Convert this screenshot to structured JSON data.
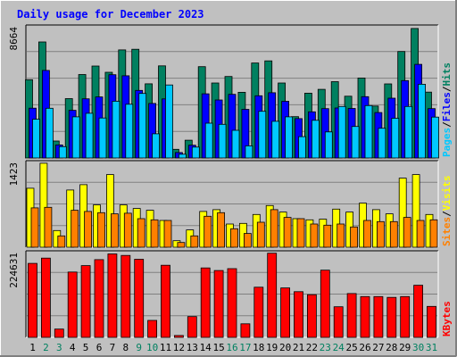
{
  "chart_data": {
    "type": "bar",
    "title": "Daily usage for December 2023",
    "x": [
      "1",
      "2",
      "3",
      "4",
      "5",
      "6",
      "7",
      "8",
      "9",
      "10",
      "11",
      "12",
      "13",
      "14",
      "15",
      "16",
      "17",
      "18",
      "19",
      "20",
      "21",
      "22",
      "23",
      "24",
      "25",
      "26",
      "27",
      "28",
      "29",
      "30",
      "31"
    ],
    "weekend_days": [
      "2",
      "3",
      "9",
      "10",
      "16",
      "17",
      "23",
      "24",
      "30",
      "31"
    ],
    "grid": true,
    "colors": {
      "background": "#c0c0c0",
      "title": "#0000ff",
      "pages": "#00c8ff",
      "files": "#0000ff",
      "hits": "#008060",
      "sites": "#ff8000",
      "visits": "#ffff00",
      "kbytes": "#ff0000",
      "weekday_label": "#000000",
      "weekend_label": "#008060"
    },
    "panels": [
      {
        "id": "top",
        "max_label": "8664",
        "ymax": 8664,
        "legend": [
          {
            "name": "Pages",
            "color": "#00c8ff"
          },
          {
            "name": "/",
            "color": "#000000"
          },
          {
            "name": "Files",
            "color": "#0000ff"
          },
          {
            "name": "/",
            "color": "#000000"
          },
          {
            "name": "Hits",
            "color": "#008060"
          }
        ],
        "series": [
          {
            "name": "Hits",
            "color": "#008060",
            "values": [
              5170,
              7660,
              1120,
              3920,
              5510,
              6070,
              5660,
              7140,
              7180,
              4900,
              6080,
              570,
              1170,
              6030,
              4950,
              5380,
              4340,
              6270,
              6410,
              4950,
              2730,
              4280,
              4530,
              5040,
              4080,
              5280,
              3430,
              4890,
              7030,
              8550,
              4350
            ]
          },
          {
            "name": "Files",
            "color": "#0000ff",
            "values": [
              3290,
              5780,
              860,
              3150,
              3910,
              4030,
              5500,
              5430,
              4460,
              3600,
              3900,
              360,
              840,
              4240,
              3830,
              4200,
              3210,
              4110,
              4310,
              3740,
              2600,
              3050,
              3260,
              3300,
              3270,
              4050,
              3000,
              3950,
              5110,
              6180,
              3260
            ]
          },
          {
            "name": "Pages",
            "color": "#00c8ff",
            "values": [
              2560,
              3280,
              750,
              2720,
              2950,
              2640,
              3750,
              3550,
              4260,
              1600,
              4820,
              250,
              720,
              2300,
              2220,
              1830,
              800,
              3080,
              2420,
              2720,
              1410,
              2490,
              1720,
              3400,
              2080,
              3460,
              1960,
              2620,
              3400,
              4870,
              2700
            ]
          }
        ]
      },
      {
        "id": "middle",
        "max_label": "1423",
        "ymax": 1423,
        "legend": [
          {
            "name": "Sites",
            "color": "#ff8000"
          },
          {
            "name": "/",
            "color": "#000000"
          },
          {
            "name": "Visits",
            "color": "#ffff00"
          }
        ],
        "series": [
          {
            "name": "Visits",
            "color": "#ffff00",
            "values": [
              990,
              1410,
              280,
              960,
              1050,
              710,
              1220,
              710,
              650,
              620,
              450,
              110,
              290,
              600,
              630,
              390,
              400,
              550,
              700,
              590,
              480,
              460,
              470,
              640,
              590,
              740,
              630,
              560,
              1160,
              1220,
              550
            ]
          },
          {
            "name": "Sites",
            "color": "#ff8000",
            "values": [
              660,
              670,
              190,
              620,
              600,
              580,
              560,
              570,
              480,
              460,
              450,
              80,
              190,
              520,
              580,
              310,
              230,
              420,
              630,
              500,
              480,
              390,
              370,
              390,
              340,
              450,
              430,
              430,
              500,
              450,
              460
            ]
          }
        ]
      },
      {
        "id": "bottom",
        "max_label": "224631",
        "ymax": 224631,
        "legend": [
          {
            "name": "KBytes",
            "color": "#ff0000"
          }
        ],
        "series": [
          {
            "name": "KBytes",
            "color": "#ff0000",
            "values": [
              196000,
              210000,
              22000,
              173000,
              190000,
              206000,
              221000,
              217000,
              207000,
              45000,
              191000,
              5000,
              55000,
              184000,
              177000,
              182000,
              36000,
              133000,
              223000,
              131000,
              121000,
              113000,
              178000,
              81000,
              116000,
              108000,
              108000,
              106000,
              108000,
              138000,
              82000
            ]
          }
        ]
      }
    ]
  }
}
